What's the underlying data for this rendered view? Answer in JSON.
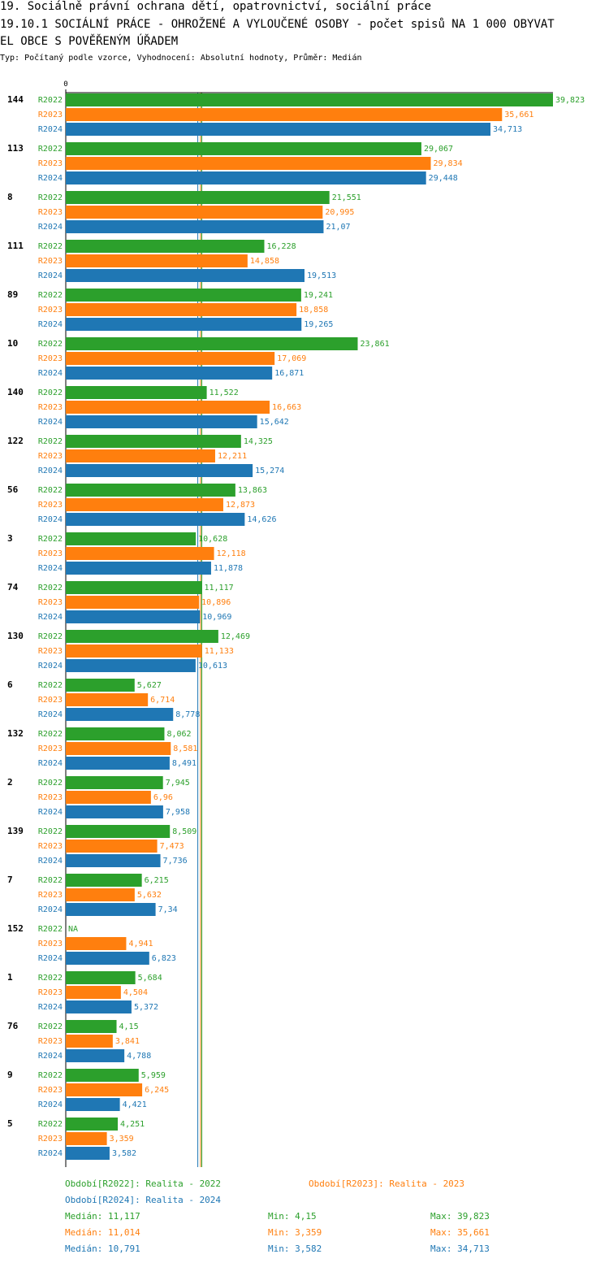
{
  "header": {
    "line1": "19. Sociálně právní ochrana dětí, opatrovnictví, sociální práce",
    "line2": "19.10.1 SOCIÁLNÍ PRÁCE - OHROŽENÉ A VYLOUČENÉ OSOBY - počet spisů NA 1 000 OBYVAT",
    "line3": "EL OBCE S POVĚŘENÝM ÚŘADEM",
    "subtitle": "Typ: Počítaný podle vzorce, Vyhodnocení: Absolutní hodnoty, Průměr: Medián"
  },
  "colors": {
    "R2022": "#2ca02c",
    "R2023": "#ff7f0e",
    "R2024": "#1f77b4"
  },
  "chart_data": {
    "type": "bar",
    "orientation": "horizontal",
    "axis_zero_label": "0",
    "xlim": [
      0,
      39.823
    ],
    "categories": [
      "144",
      "113",
      "8",
      "111",
      "89",
      "10",
      "140",
      "122",
      "56",
      "3",
      "74",
      "130",
      "6",
      "132",
      "2",
      "139",
      "7",
      "152",
      "1",
      "76",
      "9",
      "5"
    ],
    "series": [
      {
        "name": "R2022",
        "values": [
          39.823,
          29.067,
          21.551,
          16.228,
          19.241,
          23.861,
          11.522,
          14.325,
          13.863,
          10.628,
          11.117,
          12.469,
          5.627,
          8.062,
          7.945,
          8.509,
          6.215,
          null,
          5.684,
          4.15,
          5.959,
          4.251
        ],
        "labels": [
          "39,823",
          "29,067",
          "21,551",
          "16,228",
          "19,241",
          "23,861",
          "11,522",
          "14,325",
          "13,863",
          "10,628",
          "11,117",
          "12,469",
          "5,627",
          "8,062",
          "7,945",
          "8,509",
          "6,215",
          "NA",
          "5,684",
          "4,15",
          "5,959",
          "4,251"
        ]
      },
      {
        "name": "R2023",
        "values": [
          35.661,
          29.834,
          20.995,
          14.858,
          18.858,
          17.069,
          16.663,
          12.211,
          12.873,
          12.118,
          10.896,
          11.133,
          6.714,
          8.581,
          6.96,
          7.473,
          5.632,
          4.941,
          4.504,
          3.841,
          6.245,
          3.359
        ],
        "labels": [
          "35,661",
          "29,834",
          "20,995",
          "14,858",
          "18,858",
          "17,069",
          "16,663",
          "12,211",
          "12,873",
          "12,118",
          "10,896",
          "11,133",
          "6,714",
          "8,581",
          "6,96",
          "7,473",
          "5,632",
          "4,941",
          "4,504",
          "3,841",
          "6,245",
          "3,359"
        ]
      },
      {
        "name": "R2024",
        "values": [
          34.713,
          29.448,
          21.07,
          19.513,
          19.265,
          16.871,
          15.642,
          15.274,
          14.626,
          11.878,
          10.969,
          10.613,
          8.778,
          8.491,
          7.958,
          7.736,
          7.34,
          6.823,
          5.372,
          4.788,
          4.421,
          3.582
        ],
        "labels": [
          "34,713",
          "29,448",
          "21,07",
          "19,513",
          "19,265",
          "16,871",
          "15,642",
          "15,274",
          "14,626",
          "11,878",
          "10,969",
          "10,613",
          "8,778",
          "8,491",
          "7,958",
          "7,736",
          "7,34",
          "6,823",
          "5,372",
          "4,788",
          "4,421",
          "3,582"
        ]
      }
    ],
    "medians": [
      11.117,
      11.014,
      10.791
    ]
  },
  "legend": {
    "r2022": "Období[R2022]: Realita - 2022",
    "r2023": "Období[R2023]: Realita - 2023",
    "r2024": "Období[R2024]: Realita - 2024"
  },
  "stats": [
    {
      "median": "Medián: 11,117",
      "min": "Min: 4,15",
      "max": "Max: 39,823"
    },
    {
      "median": "Medián: 11,014",
      "min": "Min: 3,359",
      "max": "Max: 35,661"
    },
    {
      "median": "Medián: 10,791",
      "min": "Min: 3,582",
      "max": "Max: 34,713"
    }
  ]
}
